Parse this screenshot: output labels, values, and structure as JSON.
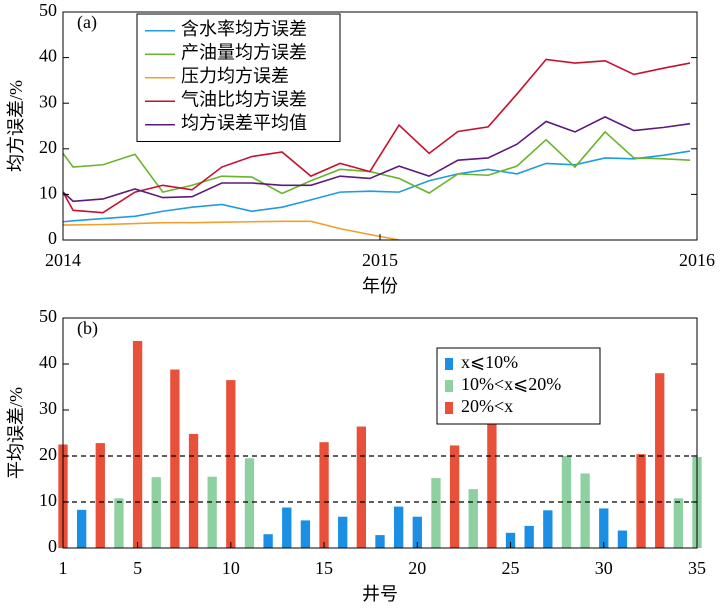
{
  "chart_data": [
    {
      "type": "line",
      "label": "(a)",
      "x_label": "年份",
      "y_label": "均方误差/%",
      "x": [
        2014.0,
        2014.032,
        2014.126,
        2014.227,
        2014.315,
        2014.407,
        2014.501,
        2014.596,
        2014.691,
        2014.782,
        2014.874,
        2014.968,
        2015.06,
        2015.155,
        2015.246,
        2015.341,
        2015.432,
        2015.524,
        2015.615,
        2015.71,
        2015.801,
        2015.896,
        2015.978
      ],
      "xlim": [
        2014,
        2016
      ],
      "xticks": [
        2014,
        2015,
        2016
      ],
      "ylim": [
        0,
        50
      ],
      "yticks": [
        0,
        10,
        20,
        30,
        40,
        50
      ],
      "legend": "upper left",
      "series": [
        {
          "name": "含水率均方误差",
          "color": "#1f9be0",
          "values": [
            4,
            4.2,
            4.7,
            5.2,
            6.3,
            7.2,
            7.8,
            6.3,
            7.2,
            8.8,
            10.5,
            10.7,
            10.5,
            13,
            14.5,
            15.5,
            14.5,
            16.8,
            16.5,
            18,
            17.8,
            18.6,
            19.5
          ]
        },
        {
          "name": "产油量均方误差",
          "color": "#6ab42d",
          "values": [
            19,
            16,
            16.5,
            18.8,
            10.5,
            12,
            14,
            13.8,
            10.2,
            13,
            15.5,
            15,
            13.5,
            10.3,
            14.5,
            14.2,
            16.2,
            22,
            16,
            23.7,
            18,
            17.8,
            17.5
          ]
        },
        {
          "name": "压力均方误差",
          "color": "#f0a030",
          "values": [
            3.3,
            3.3,
            3.4,
            3.6,
            3.8,
            3.8,
            3.9,
            4,
            4.1,
            4.1,
            2.5,
            1.2,
            0,
            null,
            null,
            null,
            null,
            null,
            null,
            null,
            null,
            null,
            null
          ]
        },
        {
          "name": "气油比均方误差",
          "color": "#c8102e",
          "values": [
            10.5,
            6.5,
            6,
            10.5,
            12,
            11,
            16,
            18.3,
            19.3,
            14,
            16.8,
            15,
            25.2,
            19,
            23.8,
            24.8,
            32,
            39.6,
            38.8,
            39.3,
            36.3,
            37.7,
            38.8
          ]
        },
        {
          "name": "均方误差平均值",
          "color": "#5c1a7a",
          "values": [
            10.5,
            8.5,
            9,
            11.2,
            9.3,
            9.5,
            12.5,
            12.5,
            12,
            12,
            14,
            13.5,
            16.2,
            14,
            17.5,
            18,
            21,
            26,
            23.7,
            27,
            24,
            24.7,
            25.5
          ]
        }
      ]
    },
    {
      "type": "bar",
      "label": "(b)",
      "x_label": "井号",
      "y_label": "平均误差/%",
      "x": [
        1,
        2,
        3,
        4,
        5,
        6,
        7,
        8,
        9,
        10,
        11,
        12,
        13,
        14,
        15,
        16,
        17,
        18,
        19,
        20,
        21,
        22,
        23,
        24,
        25,
        26,
        27,
        28,
        29,
        30,
        31,
        32,
        33,
        34,
        35
      ],
      "xlim": [
        1,
        35
      ],
      "xticks": [
        1,
        5,
        10,
        15,
        20,
        25,
        30,
        35
      ],
      "ylim": [
        0,
        50
      ],
      "yticks": [
        0,
        10,
        20,
        30,
        40,
        50
      ],
      "reference_lines": [
        10,
        20
      ],
      "legend": "upper right",
      "series": [
        {
          "name": "x⩽10%",
          "color": "#1a8fe3",
          "values": [
            null,
            8.3,
            null,
            null,
            null,
            null,
            null,
            null,
            null,
            null,
            null,
            3,
            8.8,
            6,
            null,
            6.8,
            null,
            2.8,
            9,
            6.8,
            null,
            null,
            null,
            null,
            3.3,
            4.8,
            8.2,
            null,
            null,
            8.6,
            3.8,
            null,
            null,
            null,
            null
          ]
        },
        {
          "name": "10%<x⩽20%",
          "color": "#8fd0a0",
          "values": [
            null,
            null,
            null,
            10.8,
            null,
            15.4,
            null,
            null,
            15.5,
            null,
            19.5,
            null,
            null,
            null,
            null,
            null,
            null,
            null,
            null,
            null,
            15.2,
            null,
            12.8,
            null,
            null,
            null,
            null,
            20,
            16.2,
            null,
            null,
            null,
            null,
            10.8,
            19.8
          ]
        },
        {
          "name": "20%<x",
          "color": "#e8503a",
          "values": [
            22.5,
            null,
            22.8,
            null,
            45,
            null,
            38.8,
            24.8,
            null,
            36.5,
            null,
            null,
            null,
            null,
            23,
            null,
            26.4,
            null,
            null,
            null,
            null,
            22.3,
            null,
            27.5,
            null,
            null,
            null,
            null,
            null,
            null,
            null,
            20.4,
            38,
            null,
            null
          ]
        }
      ]
    }
  ]
}
